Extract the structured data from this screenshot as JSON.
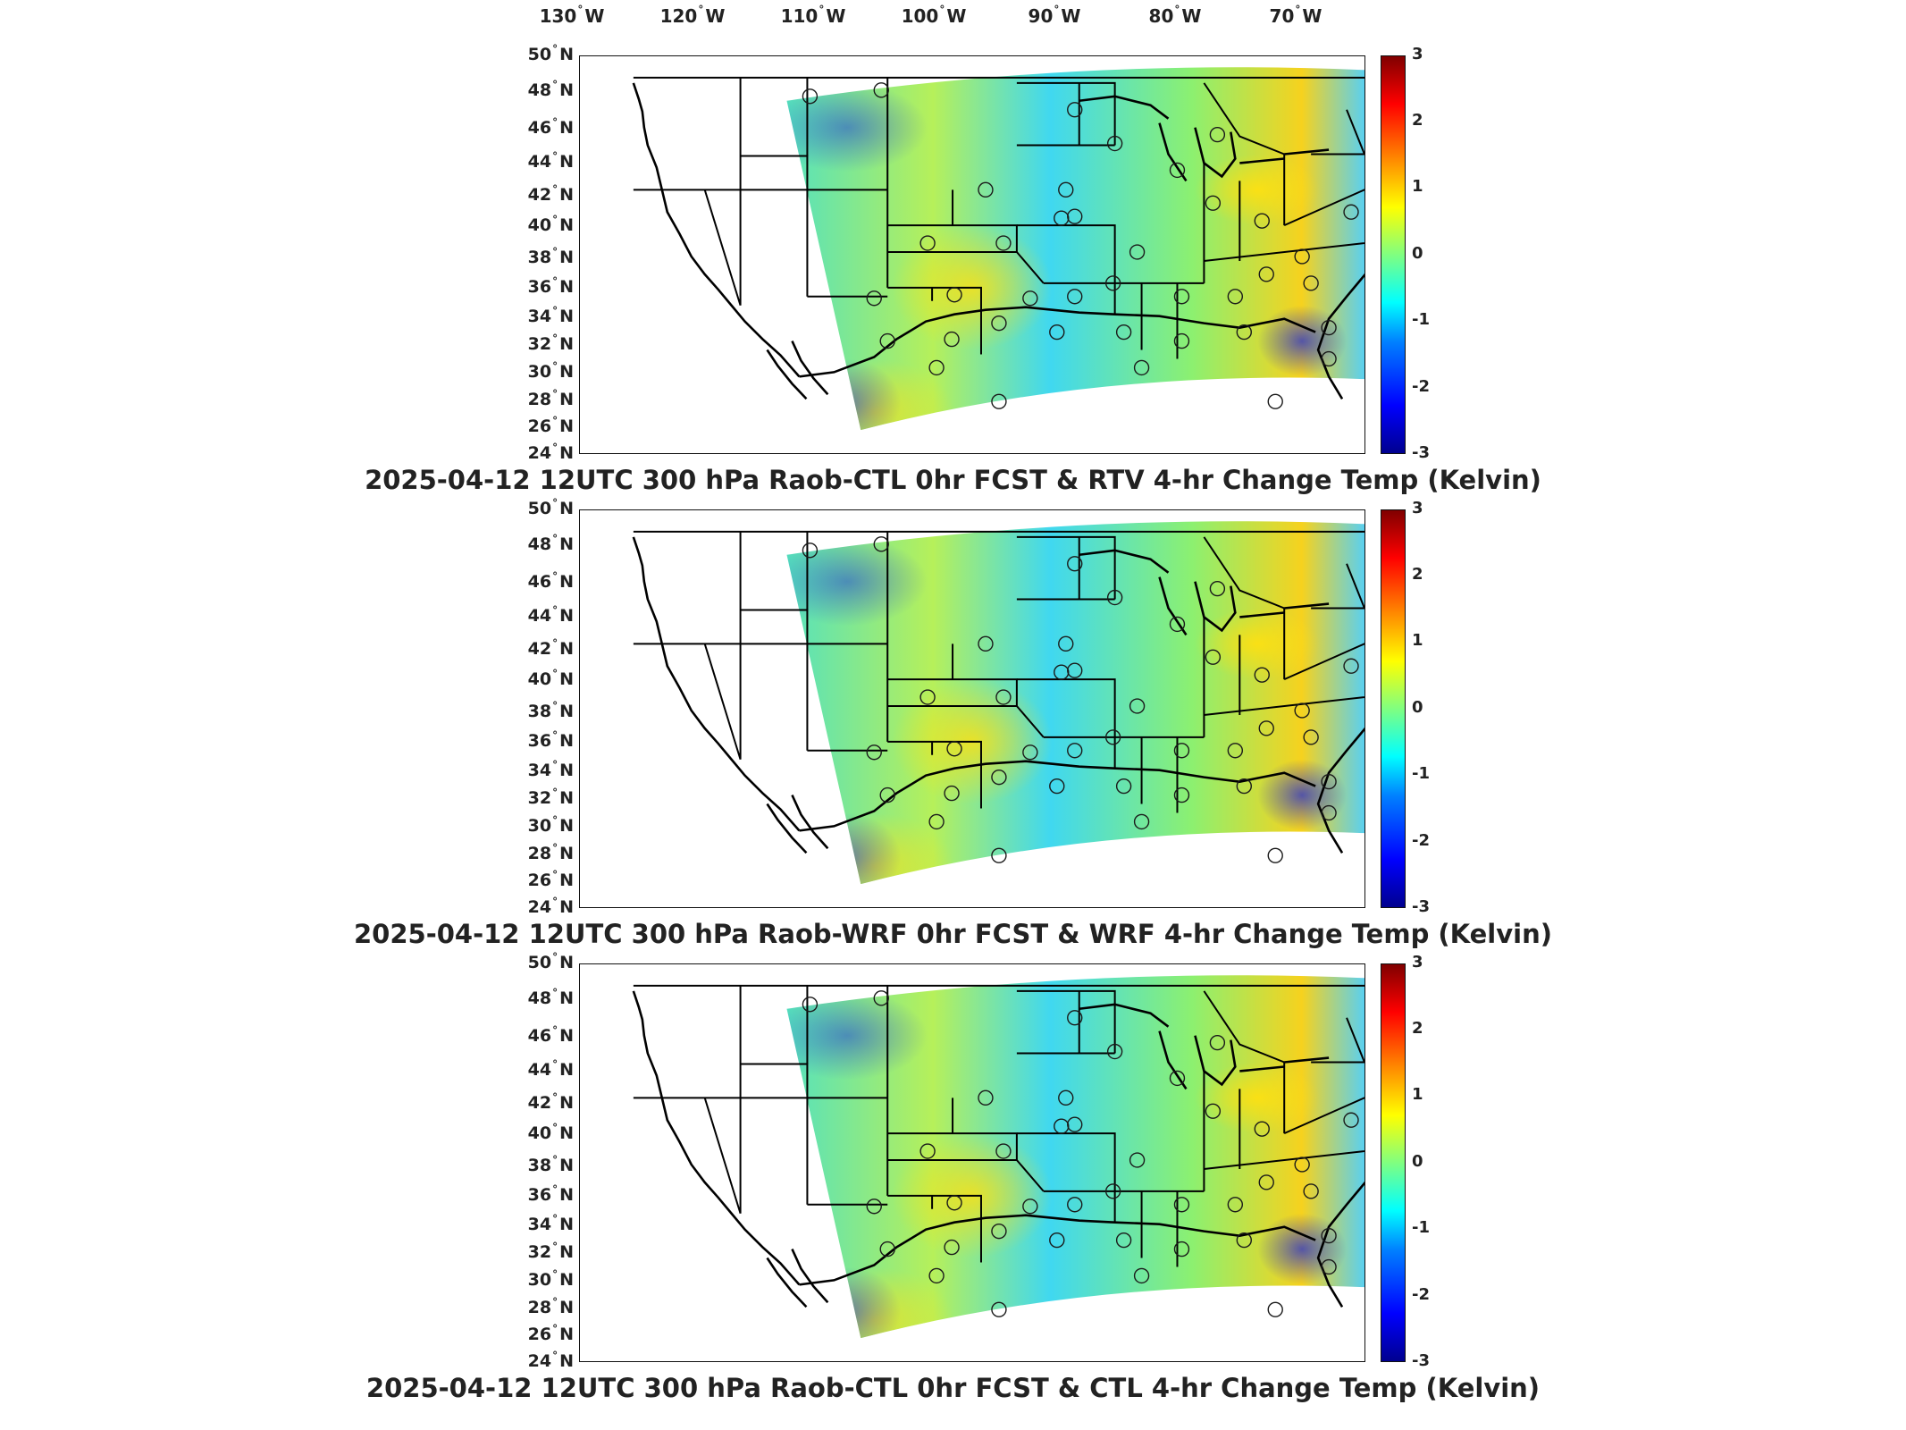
{
  "lon_labels": [
    {
      "deg": "130",
      "dir": "W"
    },
    {
      "deg": "120",
      "dir": "W"
    },
    {
      "deg": "110",
      "dir": "W"
    },
    {
      "deg": "100",
      "dir": "W"
    },
    {
      "deg": "90",
      "dir": "W"
    },
    {
      "deg": "80",
      "dir": "W"
    },
    {
      "deg": "70",
      "dir": "W"
    }
  ],
  "lat_labels": [
    {
      "deg": "50",
      "dir": "N"
    },
    {
      "deg": "48",
      "dir": "N"
    },
    {
      "deg": "46",
      "dir": "N"
    },
    {
      "deg": "44",
      "dir": "N"
    },
    {
      "deg": "42",
      "dir": "N"
    },
    {
      "deg": "40",
      "dir": "N"
    },
    {
      "deg": "38",
      "dir": "N"
    },
    {
      "deg": "36",
      "dir": "N"
    },
    {
      "deg": "34",
      "dir": "N"
    },
    {
      "deg": "32",
      "dir": "N"
    },
    {
      "deg": "30",
      "dir": "N"
    },
    {
      "deg": "28",
      "dir": "N"
    },
    {
      "deg": "26",
      "dir": "N"
    },
    {
      "deg": "24",
      "dir": "N"
    }
  ],
  "colorbar_ticks": [
    "3",
    "2",
    "1",
    "0",
    "-1",
    "-2",
    "-3"
  ],
  "colormap": [
    "#00008f",
    "#0000ff",
    "#0080ff",
    "#00ffff",
    "#80ff80",
    "#ffff00",
    "#ff8000",
    "#ff0000",
    "#800000"
  ],
  "panels": [
    {
      "title": "2025-04-12 12UTC 300 hPa Raob-CTL 0hr FCST & RTV 4-hr Change Temp (Kelvin)"
    },
    {
      "title": "2025-04-12 12UTC 300 hPa Raob-WRF 0hr FCST & WRF 4-hr Change Temp (Kelvin)"
    },
    {
      "title": "2025-04-12 12UTC 300 hPa Raob-CTL 0hr FCST & CTL 4-hr Change Temp (Kelvin)"
    }
  ]
}
